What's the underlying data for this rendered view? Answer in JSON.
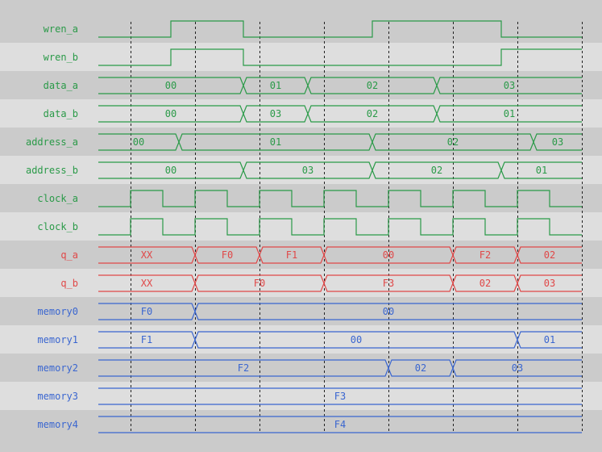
{
  "colors": {
    "control": "#2a9a48",
    "output": "#e04848",
    "memory": "#3a66d0",
    "row_dark": "#cbcbcb",
    "row_light": "#dedede",
    "grid": "#222222"
  },
  "time": {
    "start": 0,
    "end": 15,
    "clock_period": 2,
    "grid_times": [
      1,
      3,
      5,
      7,
      9,
      11,
      13,
      15
    ]
  },
  "signals": [
    {
      "name": "wren_a",
      "kind": "bit",
      "group": "control",
      "initial": 0,
      "edges": [
        2.25,
        4.5,
        8.5,
        12.5
      ]
    },
    {
      "name": "wren_b",
      "kind": "bit",
      "group": "control",
      "initial": 0,
      "edges": [
        2.25,
        4.5,
        12.5
      ]
    },
    {
      "name": "data_a",
      "kind": "bus",
      "group": "control",
      "segments": [
        {
          "value": "00",
          "start": 0,
          "end": 4.5
        },
        {
          "value": "01",
          "start": 4.5,
          "end": 6.5
        },
        {
          "value": "02",
          "start": 6.5,
          "end": 10.5
        },
        {
          "value": "03",
          "start": 10.5,
          "end": 15
        }
      ]
    },
    {
      "name": "data_b",
      "kind": "bus",
      "group": "control",
      "segments": [
        {
          "value": "00",
          "start": 0,
          "end": 4.5
        },
        {
          "value": "03",
          "start": 4.5,
          "end": 6.5
        },
        {
          "value": "02",
          "start": 6.5,
          "end": 10.5
        },
        {
          "value": "01",
          "start": 10.5,
          "end": 15
        }
      ]
    },
    {
      "name": "address_a",
      "kind": "bus",
      "group": "control",
      "segments": [
        {
          "value": "00",
          "start": 0,
          "end": 2.5
        },
        {
          "value": "01",
          "start": 2.5,
          "end": 8.5
        },
        {
          "value": "02",
          "start": 8.5,
          "end": 13.5
        },
        {
          "value": "03",
          "start": 13.5,
          "end": 15
        }
      ]
    },
    {
      "name": "address_b",
      "kind": "bus",
      "group": "control",
      "segments": [
        {
          "value": "00",
          "start": 0,
          "end": 4.5
        },
        {
          "value": "03",
          "start": 4.5,
          "end": 8.5
        },
        {
          "value": "02",
          "start": 8.5,
          "end": 12.5
        },
        {
          "value": "01",
          "start": 12.5,
          "end": 15
        }
      ]
    },
    {
      "name": "clock_a",
      "kind": "clock",
      "group": "control"
    },
    {
      "name": "clock_b",
      "kind": "clock",
      "group": "control"
    },
    {
      "name": "q_a",
      "kind": "bus",
      "group": "output",
      "segments": [
        {
          "value": "XX",
          "start": 0,
          "end": 3
        },
        {
          "value": "F0",
          "start": 3,
          "end": 5
        },
        {
          "value": "F1",
          "start": 5,
          "end": 7
        },
        {
          "value": "00",
          "start": 7,
          "end": 11
        },
        {
          "value": "F2",
          "start": 11,
          "end": 13
        },
        {
          "value": "02",
          "start": 13,
          "end": 15
        }
      ]
    },
    {
      "name": "q_b",
      "kind": "bus",
      "group": "output",
      "segments": [
        {
          "value": "XX",
          "start": 0,
          "end": 3
        },
        {
          "value": "F0",
          "start": 3,
          "end": 7
        },
        {
          "value": "F3",
          "start": 7,
          "end": 11
        },
        {
          "value": "02",
          "start": 11,
          "end": 13
        },
        {
          "value": "03",
          "start": 13,
          "end": 15
        }
      ]
    },
    {
      "name": "memory0",
      "kind": "bus",
      "group": "memory",
      "segments": [
        {
          "value": "F0",
          "start": 0,
          "end": 3
        },
        {
          "value": "00",
          "start": 3,
          "end": 15
        }
      ]
    },
    {
      "name": "memory1",
      "kind": "bus",
      "group": "memory",
      "segments": [
        {
          "value": "F1",
          "start": 0,
          "end": 3
        },
        {
          "value": "00",
          "start": 3,
          "end": 13
        },
        {
          "value": "01",
          "start": 13,
          "end": 15
        }
      ]
    },
    {
      "name": "memory2",
      "kind": "bus",
      "group": "memory",
      "segments": [
        {
          "value": "F2",
          "start": 0,
          "end": 9
        },
        {
          "value": "02",
          "start": 9,
          "end": 11
        },
        {
          "value": "03",
          "start": 11,
          "end": 15
        }
      ]
    },
    {
      "name": "memory3",
      "kind": "bus",
      "group": "memory",
      "segments": [
        {
          "value": "F3",
          "start": 0,
          "end": 15
        }
      ]
    },
    {
      "name": "memory4",
      "kind": "bus",
      "group": "memory",
      "segments": [
        {
          "value": "F4",
          "start": 0,
          "end": 15
        }
      ]
    }
  ]
}
